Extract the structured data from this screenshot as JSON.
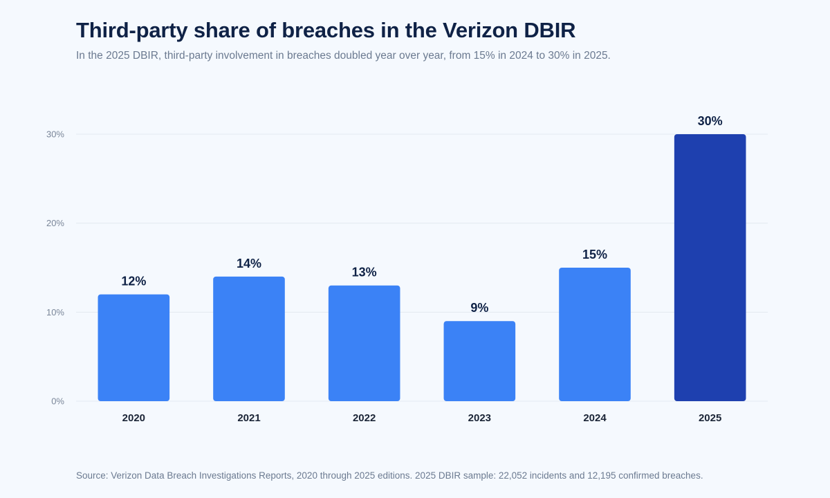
{
  "header": {
    "title": "Third-party share of breaches in the Verizon DBIR",
    "subtitle": "In the 2025 DBIR, third-party involvement in breaches doubled year over year, from 15% in 2024 to 30% in 2025."
  },
  "footer": {
    "source": "Source: Verizon Data Breach Investigations Reports, 2020 through 2025 editions. 2025 DBIR sample: 22,052 incidents and 12,195 confirmed breaches."
  },
  "colors": {
    "bar": "#3b82f6",
    "bar_highlight": "#1e40af",
    "background": "#f5f9fe"
  },
  "chart_data": {
    "type": "bar",
    "title": "Third-party share of breaches in the Verizon DBIR",
    "xlabel": "",
    "ylabel": "",
    "categories": [
      "2020",
      "2021",
      "2022",
      "2023",
      "2024",
      "2025"
    ],
    "values": [
      12,
      14,
      13,
      9,
      15,
      30
    ],
    "value_labels": [
      "12%",
      "14%",
      "13%",
      "9%",
      "15%",
      "30%"
    ],
    "highlight": "2025",
    "ylim": [
      0,
      30
    ],
    "yticks": [
      0,
      10,
      20,
      30
    ],
    "ytick_labels": [
      "0%",
      "10%",
      "20%",
      "30%"
    ],
    "grid": true,
    "legend": "none"
  }
}
